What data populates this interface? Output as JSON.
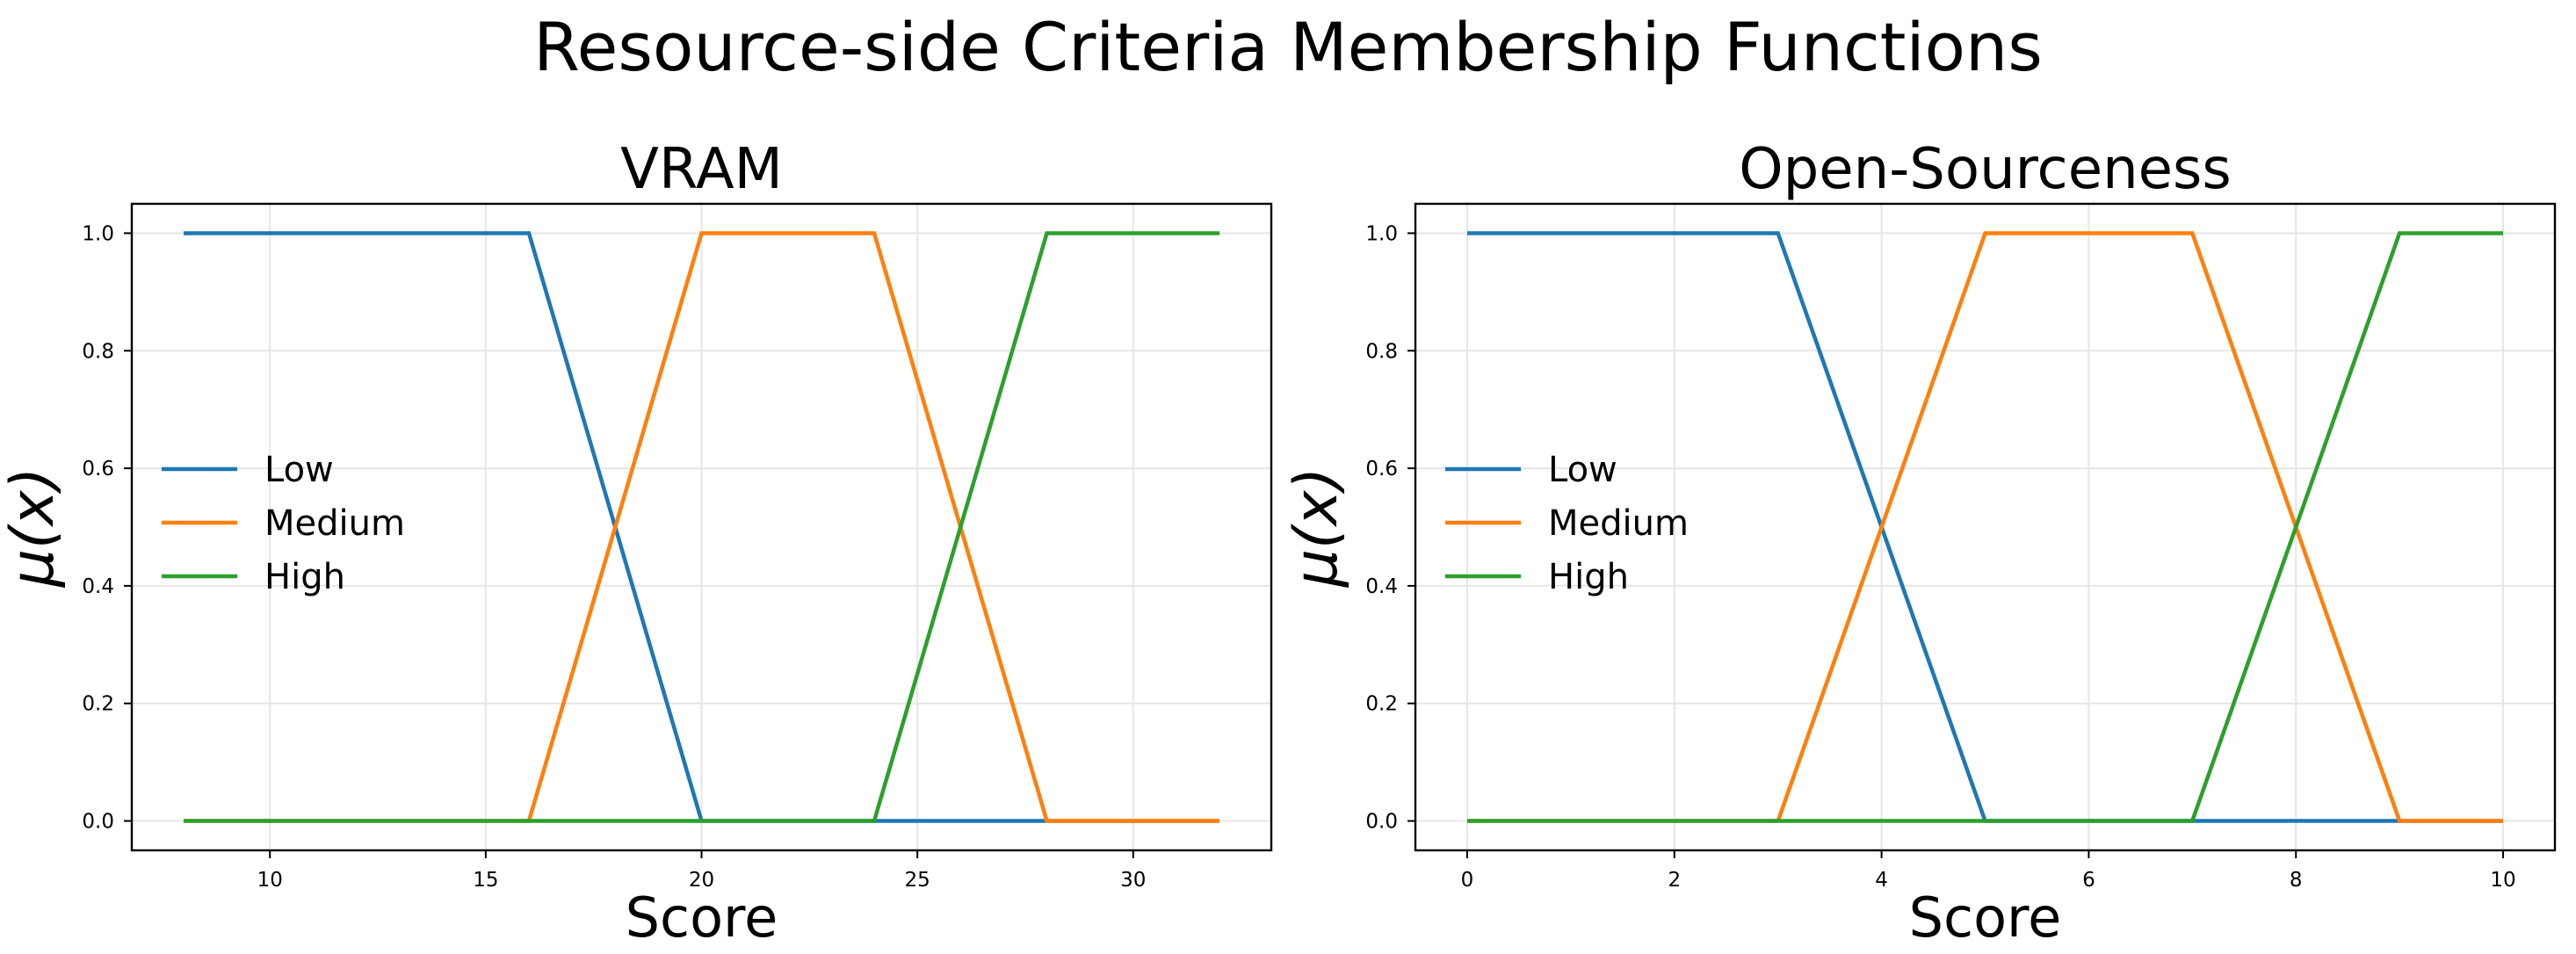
{
  "figure": {
    "title": "Resource-side Criteria Membership Functions"
  },
  "series_colors": {
    "Low": "#1f77b4",
    "Medium": "#ff7f0e",
    "High": "#2ca02c"
  },
  "chart_data": [
    {
      "type": "line",
      "title": "VRAM",
      "xlabel": "Score",
      "ylabel": "μ(x)",
      "xlim": [
        6.8,
        33.2
      ],
      "ylim": [
        -0.05,
        1.05
      ],
      "xticks": [
        10,
        15,
        20,
        25,
        30
      ],
      "xtick_labels": [
        "10",
        "15",
        "20",
        "25",
        "30"
      ],
      "yticks": [
        0.0,
        0.2,
        0.4,
        0.6,
        0.8,
        1.0
      ],
      "ytick_labels": [
        "0.0",
        "0.2",
        "0.4",
        "0.6",
        "0.8",
        "1.0"
      ],
      "grid": true,
      "legend": "center-left",
      "series": [
        {
          "name": "Low",
          "x": [
            8,
            16,
            20,
            32
          ],
          "y": [
            1.0,
            1.0,
            0.0,
            0.0
          ]
        },
        {
          "name": "Medium",
          "x": [
            8,
            16,
            20,
            24,
            28,
            32
          ],
          "y": [
            0.0,
            0.0,
            1.0,
            1.0,
            0.0,
            0.0
          ]
        },
        {
          "name": "High",
          "x": [
            8,
            24,
            28,
            32
          ],
          "y": [
            0.0,
            0.0,
            1.0,
            1.0
          ]
        }
      ]
    },
    {
      "type": "line",
      "title": "Open-Sourceness",
      "xlabel": "Score",
      "ylabel": "μ(x)",
      "xlim": [
        -0.5,
        10.5
      ],
      "ylim": [
        -0.05,
        1.05
      ],
      "xticks": [
        0,
        2,
        4,
        6,
        8,
        10
      ],
      "xtick_labels": [
        "0",
        "2",
        "4",
        "6",
        "8",
        "10"
      ],
      "yticks": [
        0.0,
        0.2,
        0.4,
        0.6,
        0.8,
        1.0
      ],
      "ytick_labels": [
        "0.0",
        "0.2",
        "0.4",
        "0.6",
        "0.8",
        "1.0"
      ],
      "grid": true,
      "legend": "center-left",
      "series": [
        {
          "name": "Low",
          "x": [
            0,
            3,
            5,
            10
          ],
          "y": [
            1.0,
            1.0,
            0.0,
            0.0
          ]
        },
        {
          "name": "Medium",
          "x": [
            0,
            3,
            5,
            7,
            9,
            10
          ],
          "y": [
            0.0,
            0.0,
            1.0,
            1.0,
            0.0,
            0.0
          ]
        },
        {
          "name": "High",
          "x": [
            0,
            7,
            9,
            10
          ],
          "y": [
            0.0,
            0.0,
            1.0,
            1.0
          ]
        }
      ]
    }
  ]
}
